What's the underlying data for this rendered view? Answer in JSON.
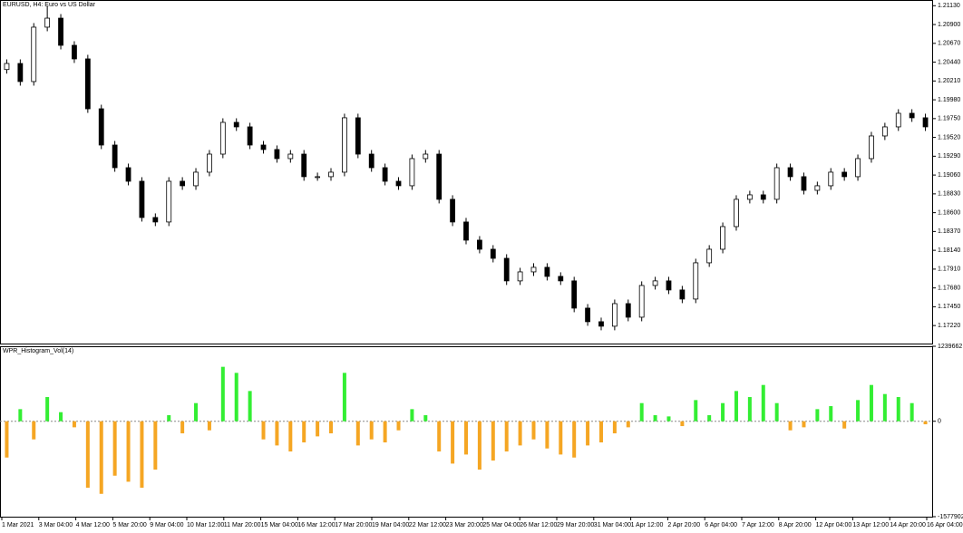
{
  "chart_data": [
    {
      "type": "candlestick",
      "title": "EURUSD, H4: Euro vs US Dollar",
      "open": [
        1.2035,
        1.20424,
        1.20203,
        1.20868,
        1.20978,
        1.20646,
        1.2048,
        1.1987,
        1.19427,
        1.1915,
        1.18984,
        1.18541,
        1.18486,
        1.18984,
        1.18929,
        1.19095,
        1.19316,
        1.19704,
        1.19649,
        1.19427,
        1.19372,
        1.19261,
        1.19316,
        1.1904,
        1.1904,
        1.19095,
        1.1976,
        1.19316,
        1.1915,
        1.18984,
        1.18929,
        1.19261,
        1.19316,
        1.18763,
        1.18486,
        1.18264,
        1.18153,
        1.18042,
        1.17766,
        1.17876,
        1.17932,
        1.17821,
        1.17766,
        1.17433,
        1.17267,
        1.17212,
        1.17488,
        1.17322,
        1.1771,
        1.17766,
        1.17655,
        1.17544,
        1.17987,
        1.18153,
        1.1843,
        1.18763,
        1.18818,
        1.18763,
        1.1915,
        1.1904,
        1.18873,
        1.18929,
        1.19095,
        1.1904,
        1.19261,
        1.19538,
        1.19649,
        1.19815,
        1.1976
      ],
      "high": [
        1.20474,
        1.20474,
        1.20918,
        1.2113,
        1.21028,
        1.20696,
        1.2053,
        1.1992,
        1.19477,
        1.192,
        1.19034,
        1.18591,
        1.19034,
        1.19034,
        1.19145,
        1.19366,
        1.19754,
        1.19754,
        1.19699,
        1.19477,
        1.19422,
        1.19366,
        1.19366,
        1.1909,
        1.19145,
        1.1981,
        1.1981,
        1.19366,
        1.192,
        1.19034,
        1.19311,
        1.19366,
        1.19366,
        1.18813,
        1.18536,
        1.18314,
        1.18203,
        1.18092,
        1.17926,
        1.17982,
        1.17982,
        1.17871,
        1.17816,
        1.17483,
        1.17317,
        1.17538,
        1.17538,
        1.1776,
        1.17816,
        1.17816,
        1.17705,
        1.18037,
        1.18203,
        1.1848,
        1.18813,
        1.18868,
        1.18868,
        1.192,
        1.192,
        1.1909,
        1.18979,
        1.19145,
        1.19145,
        1.19311,
        1.19588,
        1.19699,
        1.19865,
        1.19865,
        1.1981
      ],
      "low": [
        1.203,
        1.20153,
        1.20153,
        1.20818,
        1.20596,
        1.2043,
        1.1982,
        1.19377,
        1.191,
        1.18934,
        1.18491,
        1.18436,
        1.18436,
        1.18879,
        1.18879,
        1.19045,
        1.19266,
        1.19599,
        1.19377,
        1.19322,
        1.19211,
        1.19211,
        1.1899,
        1.1899,
        1.1899,
        1.19045,
        1.19266,
        1.191,
        1.18934,
        1.18879,
        1.18879,
        1.19211,
        1.18713,
        1.18436,
        1.18214,
        1.18103,
        1.17992,
        1.17716,
        1.17716,
        1.17826,
        1.17771,
        1.17716,
        1.17383,
        1.17217,
        1.17162,
        1.17162,
        1.17272,
        1.17272,
        1.1766,
        1.17605,
        1.17494,
        1.17494,
        1.17937,
        1.18103,
        1.1838,
        1.18713,
        1.18713,
        1.18713,
        1.1899,
        1.18823,
        1.18823,
        1.18879,
        1.1899,
        1.1899,
        1.19211,
        1.19488,
        1.19599,
        1.1971,
        1.19599
      ],
      "close": [
        1.20424,
        1.20203,
        1.20868,
        1.20978,
        1.20646,
        1.2048,
        1.1987,
        1.19427,
        1.1915,
        1.18984,
        1.18541,
        1.18486,
        1.18984,
        1.18929,
        1.19095,
        1.19316,
        1.19704,
        1.19649,
        1.19427,
        1.19372,
        1.19261,
        1.19316,
        1.1904,
        1.1904,
        1.19095,
        1.1976,
        1.19316,
        1.1915,
        1.18984,
        1.18929,
        1.19261,
        1.19316,
        1.18763,
        1.18486,
        1.18264,
        1.18153,
        1.18042,
        1.17766,
        1.17876,
        1.17932,
        1.17821,
        1.17766,
        1.17433,
        1.17267,
        1.17212,
        1.17488,
        1.17322,
        1.1771,
        1.17766,
        1.17655,
        1.17544,
        1.17987,
        1.18153,
        1.1843,
        1.18763,
        1.18818,
        1.18763,
        1.1915,
        1.1904,
        1.18873,
        1.18929,
        1.19095,
        1.1904,
        1.19261,
        1.19538,
        1.19649,
        1.19815,
        1.1976,
        1.19649
      ],
      "ylim": [
        1.17,
        1.212
      ],
      "yticks": [
        {
          "value": 1.2113,
          "label": "1.21130"
        },
        {
          "value": 1.209,
          "label": "1.20900"
        },
        {
          "value": 1.2067,
          "label": "1.20670"
        },
        {
          "value": 1.2044,
          "label": "1.20440"
        },
        {
          "value": 1.2021,
          "label": "1.20210"
        },
        {
          "value": 1.1998,
          "label": "1.19980"
        },
        {
          "value": 1.1975,
          "label": "1.19750"
        },
        {
          "value": 1.1952,
          "label": "1.19520"
        },
        {
          "value": 1.1929,
          "label": "1.19290"
        },
        {
          "value": 1.1906,
          "label": "1.19060"
        },
        {
          "value": 1.1883,
          "label": "1.18830"
        },
        {
          "value": 1.186,
          "label": "1.18600"
        },
        {
          "value": 1.1837,
          "label": "1.18370"
        },
        {
          "value": 1.1814,
          "label": "1.18140"
        },
        {
          "value": 1.1791,
          "label": "1.17910"
        },
        {
          "value": 1.1768,
          "label": "1.17680"
        },
        {
          "value": 1.1745,
          "label": "1.17450"
        },
        {
          "value": 1.1722,
          "label": "1.17220"
        }
      ],
      "up_color": "#ffffff",
      "down_color": "#000000",
      "x_labels": [
        "1 Mar 2021",
        "3 Mar 04:00",
        "4 Mar 12:00",
        "5 Mar 20:00",
        "9 Mar 04:00",
        "10 Mar 12:00",
        "11 Mar 20:00",
        "15 Mar 04:00",
        "16 Mar 12:00",
        "17 Mar 20:00",
        "19 Mar 04:00",
        "22 Mar 12:00",
        "23 Mar 20:00",
        "25 Mar 04:00",
        "26 Mar 12:00",
        "29 Mar 20:00",
        "31 Mar 04:00",
        "1 Apr 12:00",
        "2 Apr 20:00",
        "6 Apr 04:00",
        "7 Apr 12:00",
        "8 Apr 20:00",
        "12 Apr 04:00",
        "13 Apr 12:00",
        "14 Apr 20:00",
        "16 Apr 04:00"
      ]
    },
    {
      "type": "bar",
      "title": "WPR_Histogram_Vol(14)",
      "values": [
        -600000,
        200000,
        -300000,
        400000,
        150000,
        -100000,
        -1100000,
        -1200000,
        -900000,
        -1000000,
        -1100000,
        -800000,
        100000,
        -200000,
        300000,
        -150000,
        900000,
        800000,
        500000,
        -300000,
        -400000,
        -500000,
        -350000,
        -250000,
        -200000,
        800000,
        -400000,
        -300000,
        -350000,
        -150000,
        200000,
        100000,
        -500000,
        -700000,
        -550000,
        -800000,
        -650000,
        -500000,
        -400000,
        -300000,
        -450000,
        -550000,
        -600000,
        -400000,
        -350000,
        -200000,
        -100000,
        300000,
        100000,
        80000,
        -80000,
        350000,
        100000,
        300000,
        500000,
        400000,
        600000,
        300000,
        -150000,
        -100000,
        200000,
        250000,
        -120000,
        350000,
        600000,
        450000,
        400000,
        300000,
        -50000
      ],
      "ylim": [
        -1577902,
        1239662
      ],
      "yticks": [
        -1577902,
        0,
        1239662
      ],
      "positive_color": "#33ee33",
      "negative_color": "#f5a623"
    }
  ]
}
